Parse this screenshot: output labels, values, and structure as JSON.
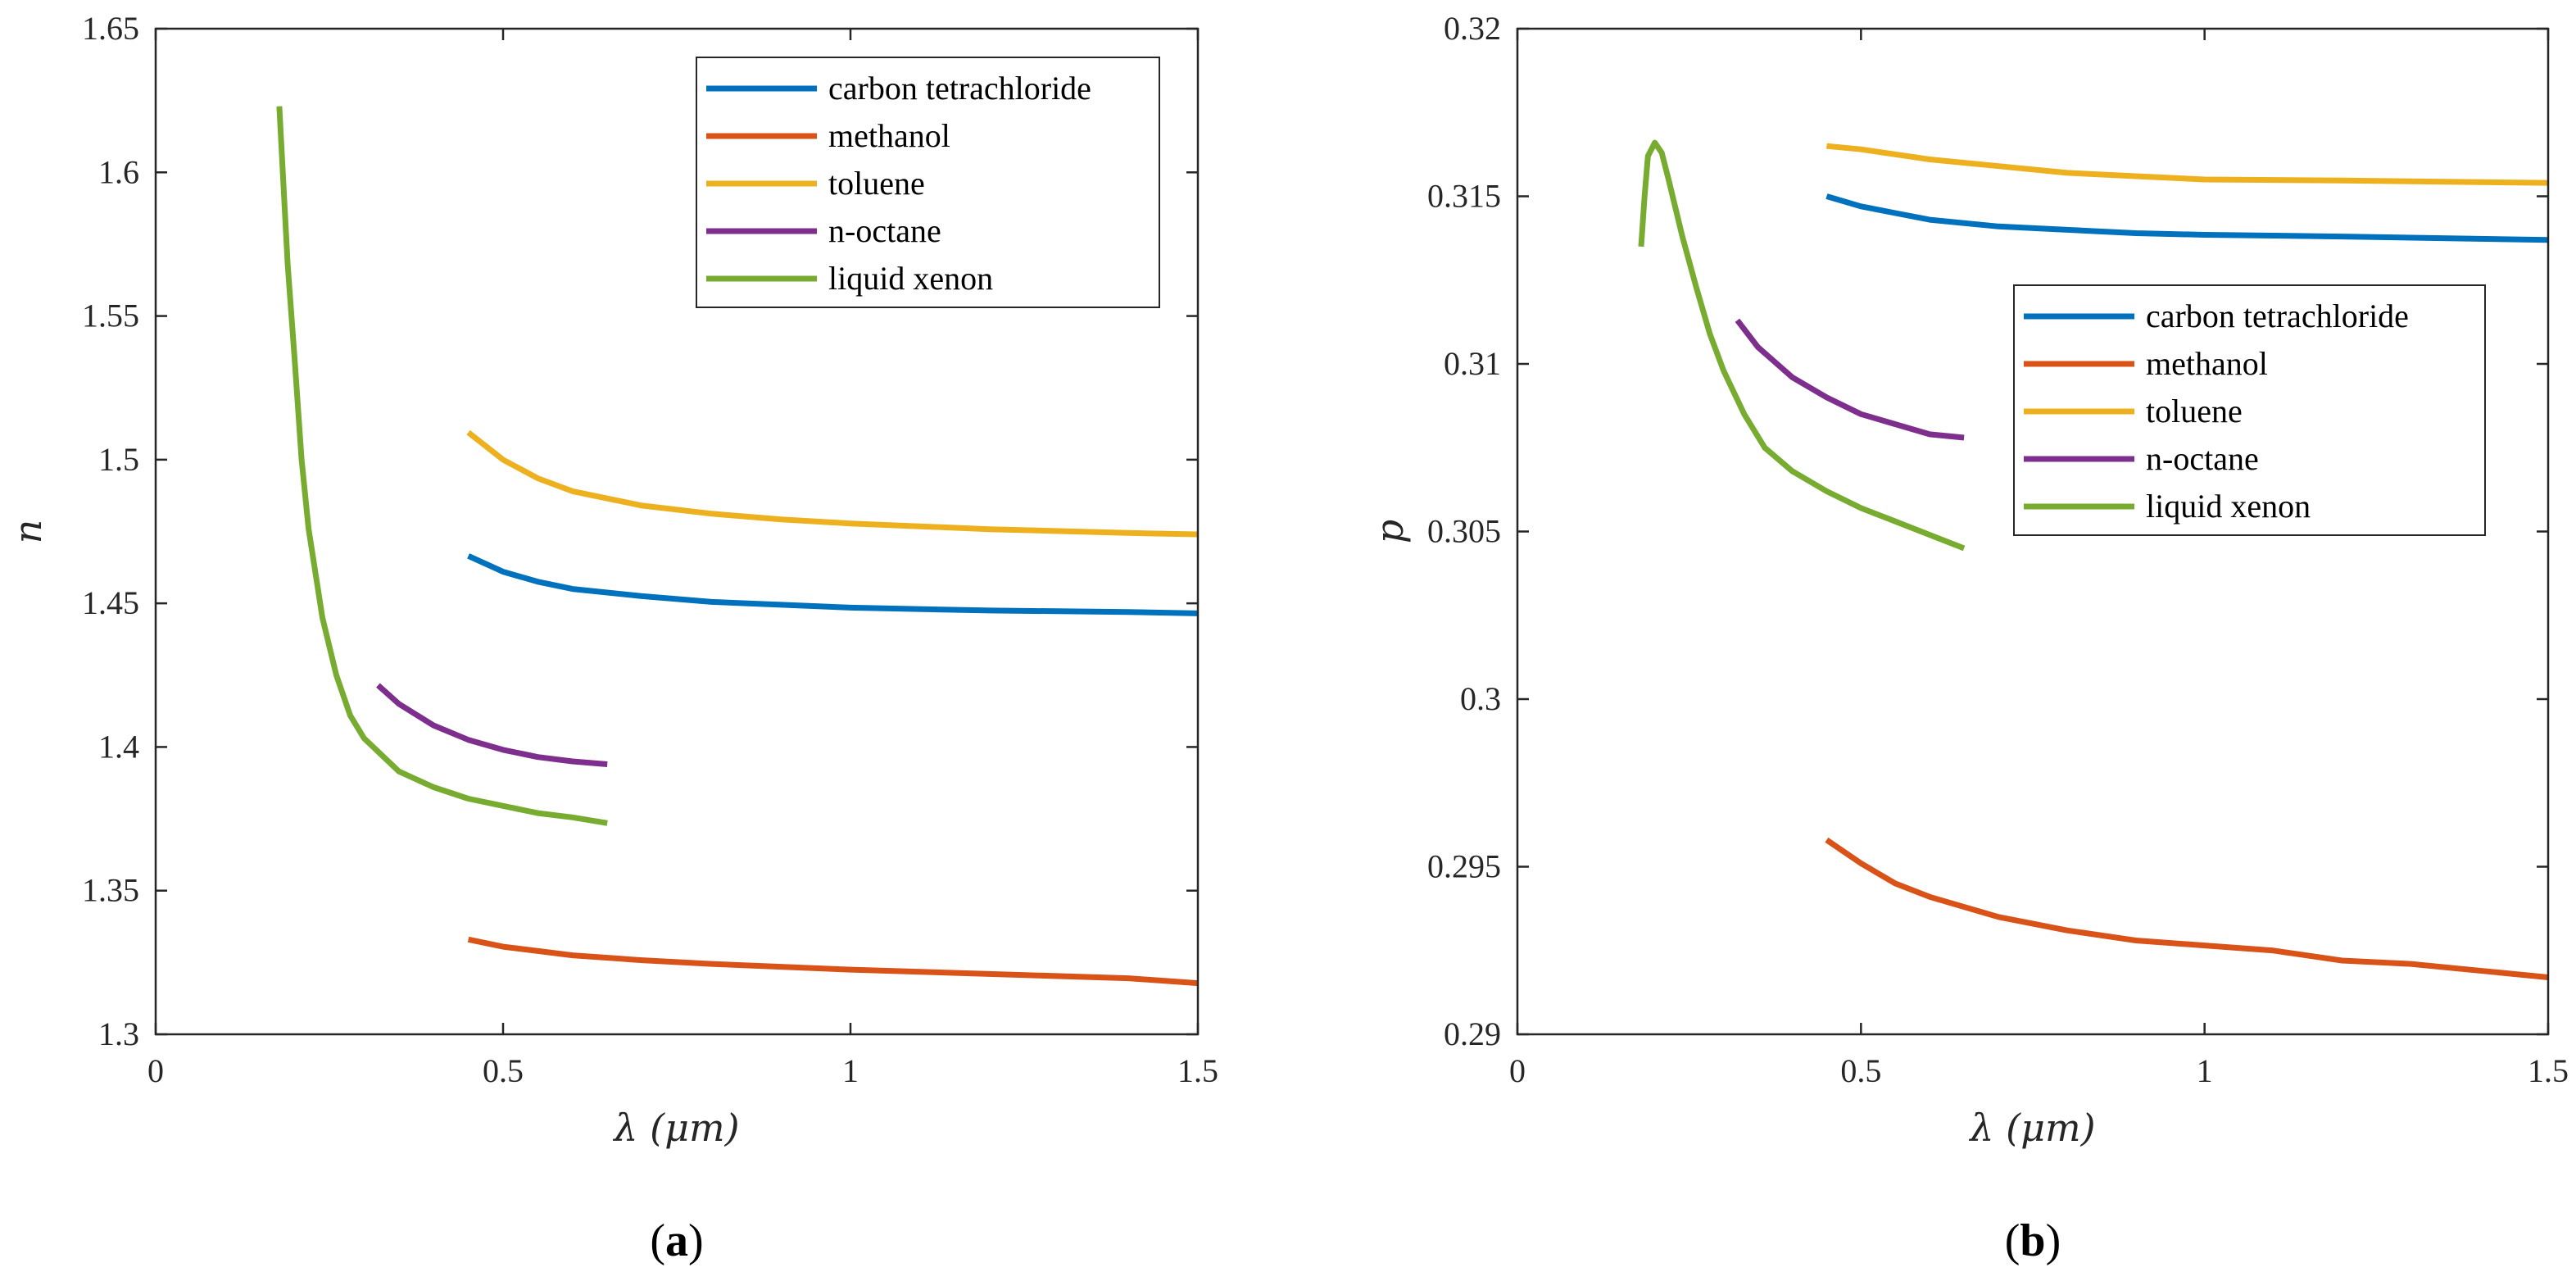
{
  "colors": {
    "carbon_tetrachloride": "#0072BD",
    "methanol": "#D95319",
    "toluene": "#EDB120",
    "n_octane": "#7E2F8E",
    "liquid_xenon": "#77AC30"
  },
  "chart_data": [
    {
      "type": "line",
      "panel_label": "a",
      "xlabel": "λ (μm)",
      "ylabel": "n",
      "xlim": [
        0,
        1.5
      ],
      "ylim": [
        1.3,
        1.65
      ],
      "xticks": [
        0,
        0.5,
        1,
        1.5
      ],
      "xtick_labels": [
        "0",
        "0.5",
        "1",
        "1.5"
      ],
      "yticks": [
        1.3,
        1.35,
        1.4,
        1.45,
        1.5,
        1.55,
        1.6,
        1.65
      ],
      "ytick_labels": [
        "1.3",
        "1.35",
        "1.4",
        "1.45",
        "1.5",
        "1.55",
        "1.6",
        "1.65"
      ],
      "grid": false,
      "legend_position": "top-right",
      "series": [
        {
          "name": "carbon tetrachloride",
          "color": "#0072BD",
          "x": [
            0.45,
            0.5,
            0.55,
            0.6,
            0.7,
            0.8,
            0.9,
            1.0,
            1.2,
            1.4,
            1.5
          ],
          "y": [
            1.4665,
            1.461,
            1.4575,
            1.455,
            1.4525,
            1.4505,
            1.4495,
            1.4485,
            1.4475,
            1.447,
            1.4465
          ]
        },
        {
          "name": "methanol",
          "color": "#D95319",
          "x": [
            0.45,
            0.5,
            0.6,
            0.7,
            0.8,
            0.9,
            1.0,
            1.2,
            1.4,
            1.5
          ],
          "y": [
            1.333,
            1.3305,
            1.3275,
            1.3258,
            1.3245,
            1.3235,
            1.3225,
            1.321,
            1.3195,
            1.3178
          ]
        },
        {
          "name": "toluene",
          "color": "#EDB120",
          "x": [
            0.45,
            0.5,
            0.55,
            0.6,
            0.7,
            0.8,
            0.9,
            1.0,
            1.2,
            1.4,
            1.5
          ],
          "y": [
            1.5095,
            1.5,
            1.4935,
            1.489,
            1.484,
            1.4812,
            1.4792,
            1.4778,
            1.4758,
            1.4745,
            1.474
          ]
        },
        {
          "name": "n-octane",
          "color": "#7E2F8E",
          "x": [
            0.32,
            0.35,
            0.4,
            0.45,
            0.5,
            0.55,
            0.6,
            0.65
          ],
          "y": [
            1.4215,
            1.415,
            1.4075,
            1.4025,
            1.399,
            1.3965,
            1.395,
            1.394
          ]
        },
        {
          "name": "liquid xenon",
          "color": "#77AC30",
          "x": [
            0.178,
            0.19,
            0.2,
            0.21,
            0.22,
            0.24,
            0.26,
            0.28,
            0.3,
            0.35,
            0.4,
            0.45,
            0.5,
            0.55,
            0.6,
            0.65
          ],
          "y": [
            1.623,
            1.568,
            1.535,
            1.5,
            1.476,
            1.445,
            1.425,
            1.411,
            1.403,
            1.3915,
            1.386,
            1.382,
            1.3795,
            1.377,
            1.3755,
            1.3735
          ]
        }
      ]
    },
    {
      "type": "line",
      "panel_label": "b",
      "xlabel": "λ (μm)",
      "ylabel": "p",
      "xlim": [
        0,
        1.5
      ],
      "ylim": [
        0.29,
        0.32
      ],
      "xticks": [
        0,
        0.5,
        1,
        1.5
      ],
      "xtick_labels": [
        "0",
        "0.5",
        "1",
        "1.5"
      ],
      "yticks": [
        0.29,
        0.295,
        0.3,
        0.305,
        0.31,
        0.315,
        0.32
      ],
      "ytick_labels": [
        "0.29",
        "0.295",
        "0.3",
        "0.305",
        "0.31",
        "0.315",
        "0.32"
      ],
      "grid": false,
      "legend_position": "upper-middle-right",
      "series": [
        {
          "name": "carbon tetrachloride",
          "color": "#0072BD",
          "x": [
            0.45,
            0.5,
            0.55,
            0.6,
            0.7,
            0.8,
            0.9,
            1.0,
            1.2,
            1.4,
            1.5
          ],
          "y": [
            0.315,
            0.3147,
            0.3145,
            0.3143,
            0.3141,
            0.314,
            0.3139,
            0.31385,
            0.3138,
            0.31373,
            0.3137
          ]
        },
        {
          "name": "methanol",
          "color": "#D95319",
          "x": [
            0.45,
            0.5,
            0.55,
            0.6,
            0.7,
            0.8,
            0.9,
            1.0,
            1.1,
            1.2,
            1.3,
            1.4,
            1.5
          ],
          "y": [
            0.2958,
            0.2951,
            0.2945,
            0.2941,
            0.2935,
            0.2931,
            0.2928,
            0.29265,
            0.2925,
            0.2922,
            0.2921,
            0.2919,
            0.2917
          ]
        },
        {
          "name": "toluene",
          "color": "#EDB120",
          "x": [
            0.45,
            0.5,
            0.6,
            0.7,
            0.8,
            0.9,
            1.0,
            1.2,
            1.4,
            1.5
          ],
          "y": [
            0.3165,
            0.3164,
            0.3161,
            0.3159,
            0.3157,
            0.3156,
            0.3155,
            0.31547,
            0.31542,
            0.3154
          ]
        },
        {
          "name": "n-octane",
          "color": "#7E2F8E",
          "x": [
            0.32,
            0.35,
            0.4,
            0.45,
            0.5,
            0.55,
            0.6,
            0.65
          ],
          "y": [
            0.3113,
            0.3105,
            0.3096,
            0.309,
            0.3085,
            0.3082,
            0.3079,
            0.3078
          ]
        },
        {
          "name": "liquid xenon",
          "color": "#77AC30",
          "x": [
            0.18,
            0.185,
            0.19,
            0.2,
            0.21,
            0.22,
            0.24,
            0.26,
            0.28,
            0.3,
            0.33,
            0.36,
            0.4,
            0.45,
            0.5,
            0.55,
            0.6,
            0.65
          ],
          "y": [
            0.3135,
            0.315,
            0.3162,
            0.3166,
            0.3163,
            0.3155,
            0.3138,
            0.3123,
            0.3109,
            0.3098,
            0.3085,
            0.3075,
            0.3068,
            0.3062,
            0.3057,
            0.3053,
            0.3049,
            0.3045
          ]
        }
      ]
    }
  ]
}
